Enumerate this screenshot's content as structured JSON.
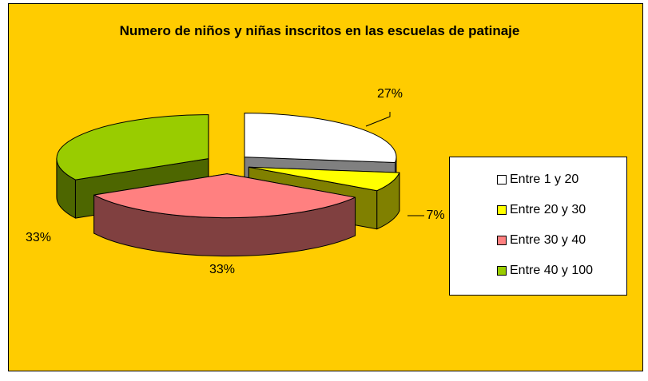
{
  "chart_data": {
    "type": "pie",
    "title": "Numero de niños y niñas inscritos en las escuelas de patinaje",
    "categories": [
      "Entre 1 y 20",
      "Entre 20 y 30",
      "Entre 30 y 40",
      "Entre 40 y 100"
    ],
    "values": [
      27,
      7,
      33,
      33
    ],
    "value_labels": [
      "27%",
      "7%",
      "33%",
      "33%"
    ],
    "colors": [
      "#ffffff",
      "#ffff00",
      "#ff8080",
      "#99cc00"
    ],
    "background": "#ffcc00",
    "legend": "right"
  }
}
